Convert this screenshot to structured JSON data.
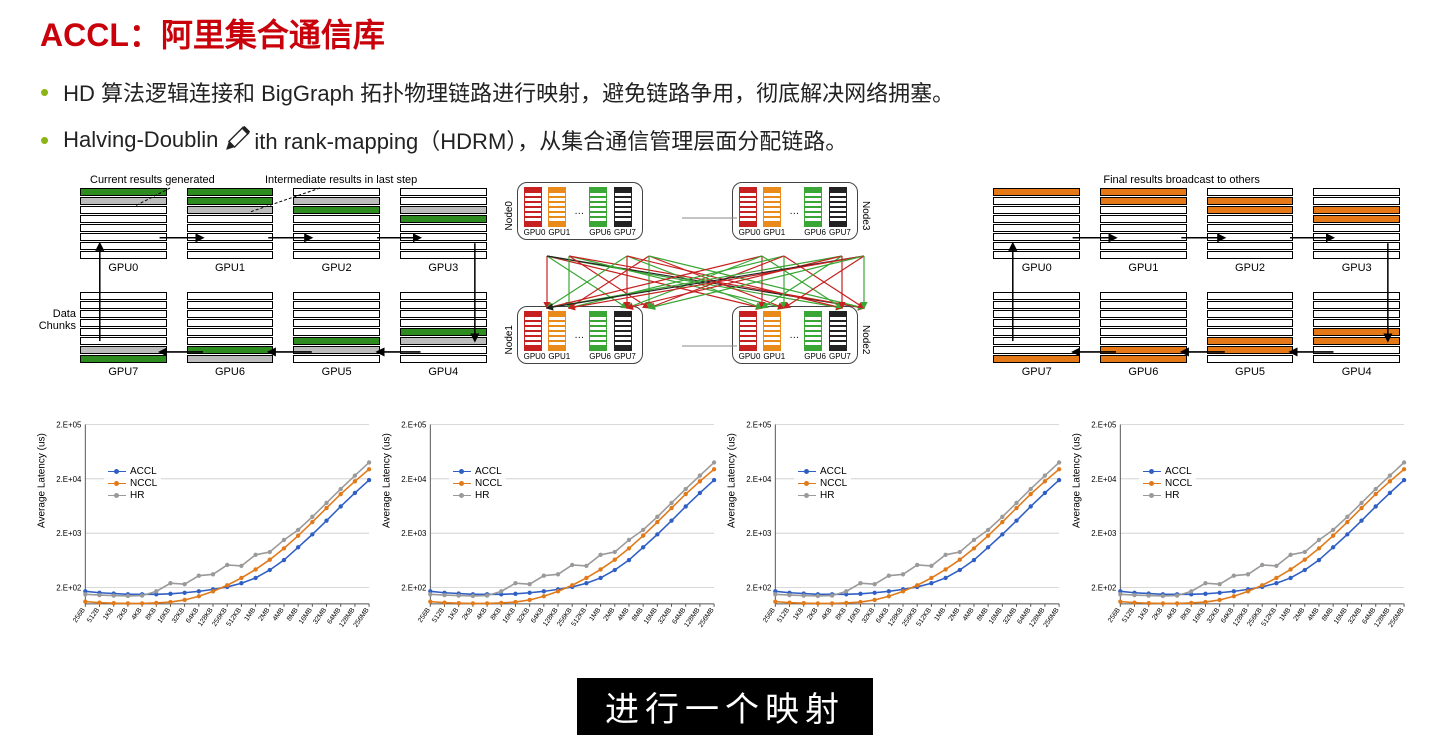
{
  "colors": {
    "title": "#c8010b",
    "bullet_marker": "#8db416",
    "body_text": "#222222",
    "slice_green": "#2e8b1f",
    "slice_grey": "#bdbdbd",
    "slice_orange": "#e57817",
    "mini_red": "#c62020",
    "mini_orange": "#e98a1a",
    "mini_green": "#3aa635",
    "mini_black": "#222222",
    "chart_accl": "#2f5fc4",
    "chart_nccl": "#e07a1a",
    "chart_hr": "#9a9a9a",
    "grid": "#cccccc",
    "axis": "#555555"
  },
  "title": "ACCL：阿里集合通信库",
  "bullets": [
    "HD 算法逻辑连接和 BigGraph 拓扑物理链路进行映射，避免链路争用，彻底解决网络拥塞。",
    "Halving-Doubling with rank-mapping（HDRM），从集合通信管理层面分配链路。"
  ],
  "pencil_split": {
    "before": "Halving-Doublin",
    "after": "ith rank-mapping（HDRM），从集合通信管理层面分配链路。"
  },
  "diagram_left": {
    "caption_a": "Current results generated",
    "caption_b": "Intermediate results in last step",
    "side_label": "Data\nChunks",
    "gpu_labels_top": [
      "GPU0",
      "GPU1",
      "GPU2",
      "GPU3"
    ],
    "gpu_labels_bot": [
      "GPU7",
      "GPU6",
      "GPU5",
      "GPU4"
    ],
    "slices_per_stack": 8,
    "highlight_top": [
      {
        "green": [
          0
        ],
        "grey": [
          1
        ]
      },
      {
        "green": [
          0,
          1
        ],
        "grey": [
          2
        ]
      },
      {
        "green": [
          2
        ],
        "grey": [
          1
        ]
      },
      {
        "green": [
          3
        ],
        "grey": [
          2
        ]
      }
    ],
    "highlight_bot": [
      {
        "green": [
          7
        ],
        "grey": [
          6
        ]
      },
      {
        "green": [
          6
        ],
        "grey": [
          7
        ]
      },
      {
        "green": [
          5
        ],
        "grey": [
          6
        ]
      },
      {
        "green": [
          4
        ],
        "grey": [
          5
        ]
      }
    ]
  },
  "diagram_right": {
    "caption": "Final results broadcast to others",
    "gpu_labels_top": [
      "GPU0",
      "GPU1",
      "GPU2",
      "GPU3"
    ],
    "gpu_labels_bot": [
      "GPU7",
      "GPU6",
      "GPU5",
      "GPU4"
    ],
    "highlight_top": [
      {
        "orange": [
          0
        ],
        "grey": []
      },
      {
        "orange": [
          0,
          1
        ],
        "grey": []
      },
      {
        "orange": [
          1,
          2
        ],
        "grey": []
      },
      {
        "orange": [
          2,
          3
        ],
        "grey": []
      }
    ],
    "highlight_bot": [
      {
        "orange": [
          7
        ],
        "grey": []
      },
      {
        "orange": [
          6,
          7
        ],
        "grey": []
      },
      {
        "orange": [
          5,
          6
        ],
        "grey": []
      },
      {
        "orange": [
          4,
          5
        ],
        "grey": []
      }
    ]
  },
  "diagram_center": {
    "nodes": [
      "Node0",
      "Node3",
      "Node1",
      "Node2"
    ],
    "mini_gpu_labels": [
      "GPU0",
      "GPU1",
      "GPU6",
      "GPU7"
    ],
    "mini_colors_left": [
      "mini_red",
      "mini_orange"
    ],
    "mini_colors_right": [
      "mini_green",
      "mini_black"
    ],
    "edge_colors": [
      "#c62020",
      "#e98a1a",
      "#3aa635",
      "#222222"
    ]
  },
  "chart": {
    "y_label": "Average Latency (us)",
    "y_ticks": [
      "2.E+02",
      "2.E+03",
      "2.E+04",
      "2.E+05"
    ],
    "x_ticks": [
      "256B",
      "512B",
      "1KB",
      "2KB",
      "4KB",
      "8KB",
      "16KB",
      "32KB",
      "64KB",
      "128KB",
      "256KB",
      "512KB",
      "1MB",
      "2MB",
      "4MB",
      "8MB",
      "16MB",
      "32MB",
      "64MB",
      "128MB",
      "256MB"
    ],
    "legend": [
      "ACCL",
      "NCCL",
      "HR"
    ],
    "series": {
      "ACCL": [
        170,
        160,
        155,
        150,
        150,
        150,
        153,
        160,
        170,
        185,
        205,
        240,
        300,
        420,
        640,
        1100,
        1900,
        3400,
        6200,
        11000,
        19000
      ],
      "NCCL": [
        110,
        105,
        103,
        102,
        102,
        104,
        108,
        118,
        138,
        170,
        220,
        300,
        430,
        650,
        1050,
        1800,
        3200,
        5800,
        10500,
        18000,
        30000
      ],
      "HR": [
        150,
        145,
        142,
        140,
        142,
        170,
        240,
        230,
        330,
        350,
        520,
        500,
        800,
        900,
        1500,
        2300,
        4000,
        7200,
        13000,
        23000,
        40000
      ]
    },
    "y_min_log": 2.0,
    "y_max_log": 5.3,
    "line_width": 1.6,
    "marker_r": 2.2
  },
  "subtitle": "进行一个映射"
}
